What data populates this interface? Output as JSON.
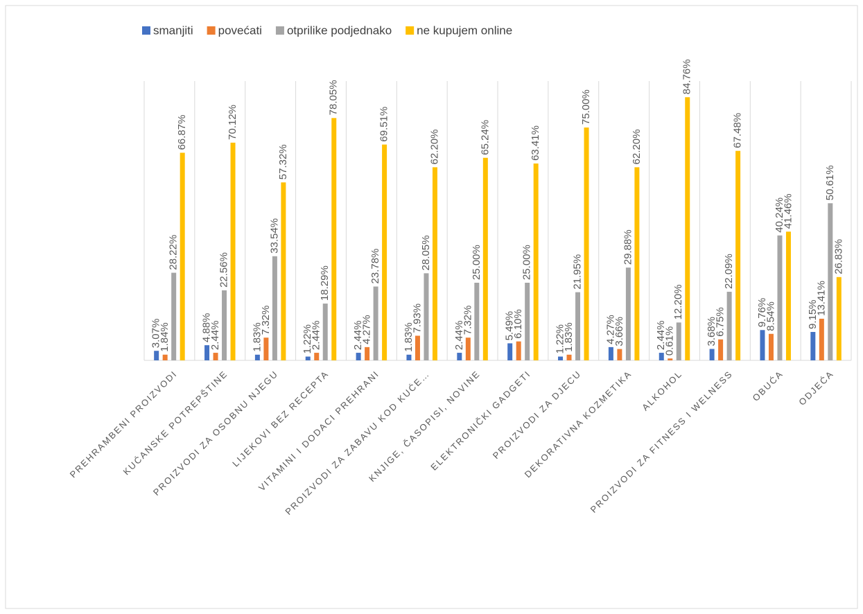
{
  "chart_data": {
    "type": "bar",
    "categories": [
      "PREHRAMBENI PROIZVODI",
      "KUĆANSKE POTREPŠTINE",
      "PROIZVODI ZA OSOBNU NJEGU",
      "LIJEKOVI BEZ RECEPTA",
      "VITAMINI I DODACI PREHRANI",
      "PROIZVODI ZA ZABAVU KOD KUĆE…",
      "KNJIGE, ČASOPISI, NOVINE",
      "ELEKTRONIČKI GADGETI",
      "PROIZVODI ZA DJECU",
      "DEKORATIVNA KOZMETIKA",
      "ALKOHOL",
      "PROIZVODI ZA FITNESS I WELNESS",
      "OBUĆA",
      "ODJEĆA"
    ],
    "series": [
      {
        "name": "smanjiti",
        "color": "#4472c4",
        "values": [
          3.07,
          4.88,
          1.83,
          1.22,
          2.44,
          1.83,
          2.44,
          5.49,
          1.22,
          4.27,
          2.44,
          3.68,
          9.76,
          9.15
        ],
        "value_labels": [
          "3.07%",
          "4.88%",
          "1.83%",
          "1.22%",
          "2.44%",
          "1.83%",
          "2.44%",
          "5.49%",
          "1.22%",
          "4.27%",
          "2.44%",
          "3.68%",
          "9.76%",
          "9.15%"
        ]
      },
      {
        "name": "povećati",
        "color": "#ed7d31",
        "values": [
          1.84,
          2.44,
          7.32,
          2.44,
          4.27,
          7.93,
          7.32,
          6.1,
          1.83,
          3.66,
          0.61,
          6.75,
          8.54,
          13.41
        ],
        "value_labels": [
          "1.84%",
          "2.44%",
          "7.32%",
          "2.44%",
          "4.27%",
          "7.93%",
          "7.32%",
          "6.10%",
          "1.83%",
          "3.66%",
          "0.61%",
          "6.75%",
          "8.54%",
          "13.41%"
        ]
      },
      {
        "name": "otprilike podjednako",
        "color": "#a5a5a5",
        "values": [
          28.22,
          22.56,
          33.54,
          18.29,
          23.78,
          28.05,
          25.0,
          25.0,
          21.95,
          29.88,
          12.2,
          22.09,
          40.24,
          50.61
        ],
        "value_labels": [
          "28.22%",
          "22.56%",
          "33.54%",
          "18.29%",
          "23.78%",
          "28.05%",
          "25.00%",
          "25.00%",
          "21.95%",
          "29.88%",
          "12.20%",
          "22.09%",
          "40.24%",
          "50.61%"
        ]
      },
      {
        "name": "ne kupujem online",
        "color": "#ffc000",
        "values": [
          66.87,
          70.12,
          57.32,
          78.05,
          69.51,
          62.2,
          65.24,
          63.41,
          75.0,
          62.2,
          84.76,
          67.48,
          41.46,
          26.83
        ],
        "value_labels": [
          "66.87%",
          "70.12%",
          "57.32%",
          "78.05%",
          "69.51%",
          "62.20%",
          "65.24%",
          "63.41%",
          "75.00%",
          "62.20%",
          "84.76%",
          "67.48%",
          "41.46%",
          "26.83%"
        ]
      }
    ],
    "grid": true,
    "legend": "top"
  }
}
